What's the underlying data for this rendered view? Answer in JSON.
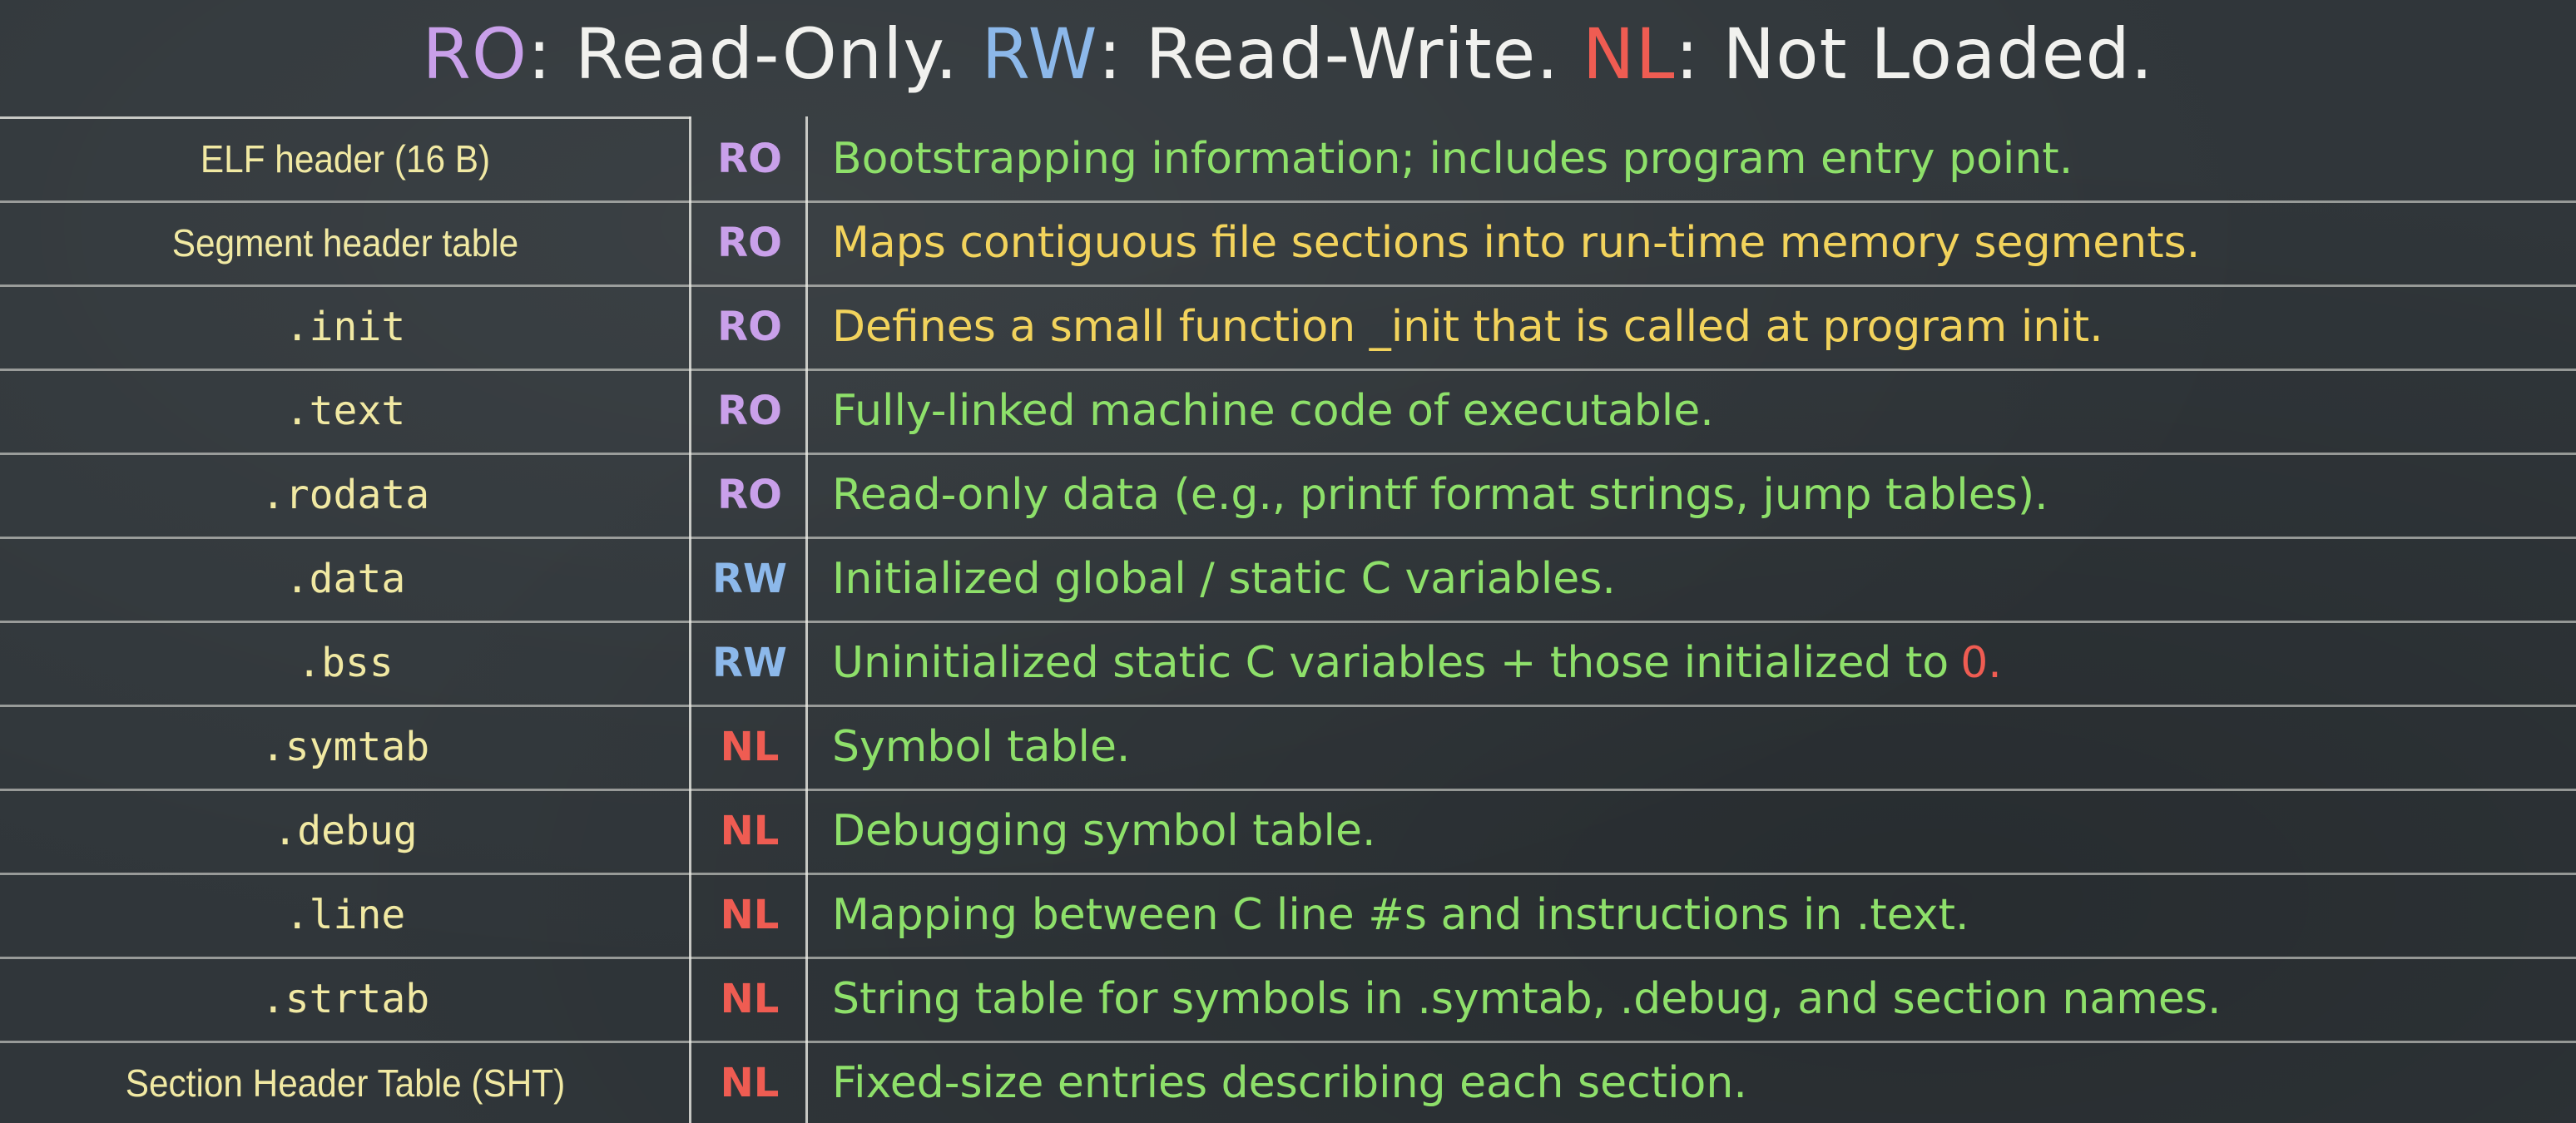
{
  "title": {
    "ro_abbr": "RO",
    "ro_text": ": Read-Only.",
    "rw_abbr": "RW",
    "rw_text": ": Read-Write.",
    "nl_abbr": "NL",
    "nl_text": ": Not Loaded."
  },
  "colors": {
    "ro": "#c9a0ea",
    "rw": "#8cb8ea",
    "nl": "#ef5c52",
    "section_text": "#f1e9a3",
    "desc_green": "#8ee06a",
    "desc_yellow": "#f2d35c"
  },
  "rows": [
    {
      "section": "ELF header (16 B)",
      "perm": "RO",
      "desc": "Bootstrapping information; includes program entry point."
    },
    {
      "section": "Segment header table",
      "perm": "RO",
      "desc": "Maps contiguous file sections into run-time memory segments."
    },
    {
      "section": ".init",
      "perm": "RO",
      "desc": "Defines a small function _init that is called at program init."
    },
    {
      "section": ".text",
      "perm": "RO",
      "desc": "Fully-linked machine code of executable."
    },
    {
      "section": ".rodata",
      "perm": "RO",
      "desc": "Read-only data (e.g., printf format strings, jump tables)."
    },
    {
      "section": ".data",
      "perm": "RW",
      "desc": "Initialized global / static C variables."
    },
    {
      "section": ".bss",
      "perm": "RW",
      "desc": "Uninitialized static C variables + those initialized to",
      "desc_suffix": "0."
    },
    {
      "section": ".symtab",
      "perm": "NL",
      "desc": "Symbol table."
    },
    {
      "section": ".debug",
      "perm": "NL",
      "desc": "Debugging symbol table."
    },
    {
      "section": ".line",
      "perm": "NL",
      "desc": "Mapping between C line #s and instructions in .text."
    },
    {
      "section": ".strtab",
      "perm": "NL",
      "desc": "String table for symbols in .symtab, .debug, and section names."
    },
    {
      "section": "Section Header Table (SHT)",
      "perm": "NL",
      "desc": "Fixed-size entries describing each section."
    }
  ]
}
